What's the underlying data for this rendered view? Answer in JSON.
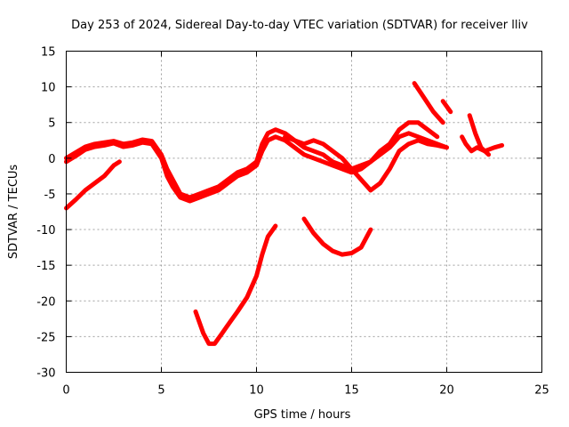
{
  "chart_data": {
    "type": "line",
    "title": "Day 253 of 2024, Sidereal Day-to-day VTEC variation (SDTVAR) for receiver lliv",
    "xlabel": "GPS time / hours",
    "ylabel": "SDTVAR / TECUs",
    "xlim": [
      0,
      25
    ],
    "ylim": [
      -30,
      15
    ],
    "xticks": [
      0,
      5,
      10,
      15,
      20,
      25
    ],
    "yticks": [
      -30,
      -25,
      -20,
      -15,
      -10,
      -5,
      0,
      5,
      10,
      15
    ],
    "grid": true,
    "legend": "none",
    "series_color": "#ff0000",
    "series": [
      {
        "x": [
          0,
          0.5,
          1,
          1.5,
          2,
          2.5,
          3,
          3.5,
          4,
          4.5,
          5,
          5.3,
          5.6,
          6,
          6.5,
          7,
          7.5,
          8,
          8.5,
          9,
          9.5,
          10,
          10.3,
          10.6,
          11,
          11.5,
          12,
          12.5,
          13,
          13.5,
          14,
          14.5,
          15,
          15.5,
          16,
          16.5,
          17,
          17.5,
          18,
          18.5,
          19,
          19.5,
          20
        ],
        "y": [
          0,
          0.8,
          1.6,
          2.0,
          2.2,
          2.4,
          2.0,
          2.2,
          2.6,
          2.4,
          0.5,
          -1.5,
          -3.0,
          -5.0,
          -5.5,
          -5.0,
          -4.5,
          -4.0,
          -3.0,
          -2.0,
          -1.5,
          -0.5,
          2.0,
          3.5,
          4.0,
          3.5,
          2.5,
          1.5,
          1.0,
          0.5,
          -0.5,
          -1.0,
          -1.5,
          -1.0,
          -0.5,
          0.5,
          1.5,
          3.0,
          3.5,
          3.0,
          2.5,
          2.0,
          1.5
        ]
      },
      {
        "x": [
          0,
          0.5,
          1,
          1.5,
          2,
          2.5,
          3,
          3.5,
          4,
          4.5,
          5,
          5.3,
          5.6,
          6,
          6.5,
          7,
          7.5,
          8,
          8.5,
          9,
          9.5,
          10,
          10.3,
          10.6,
          11,
          11.5,
          12,
          12.5,
          13,
          13.5,
          14,
          14.5,
          15,
          15.5,
          16,
          16.5,
          17,
          17.5,
          18,
          18.5,
          19,
          19.5
        ],
        "y": [
          -0.5,
          0.3,
          1.2,
          1.6,
          1.8,
          2.1,
          1.6,
          1.8,
          2.2,
          2.0,
          0,
          -2.5,
          -4.0,
          -5.5,
          -6.0,
          -5.5,
          -5.0,
          -4.5,
          -3.5,
          -2.5,
          -2.0,
          -1.0,
          1.0,
          2.5,
          3.0,
          2.5,
          1.5,
          0.5,
          0,
          -0.5,
          -1.0,
          -1.5,
          -2.0,
          -1.5,
          -0.5,
          1.0,
          2.0,
          4.0,
          5.0,
          5.0,
          4.0,
          3.0
        ]
      },
      {
        "x": [
          11.5,
          12,
          12.5,
          13,
          13.5,
          14,
          14.5,
          15,
          15.5,
          16,
          16.5,
          17,
          17.5,
          18,
          18.5,
          19,
          19.5,
          20
        ],
        "y": [
          3.0,
          2.5,
          2.0,
          2.5,
          2.0,
          1.0,
          0,
          -1.5,
          -3.0,
          -4.5,
          -3.5,
          -1.5,
          1.0,
          2.0,
          2.5,
          2.0,
          1.8,
          1.5
        ]
      },
      {
        "x": [
          0,
          0.5,
          1,
          1.5,
          2,
          2.5,
          2.8
        ],
        "y": [
          -7.0,
          -5.8,
          -4.5,
          -3.5,
          -2.5,
          -1.0,
          -0.5
        ]
      },
      {
        "x": [
          6.8,
          7.2,
          7.5,
          7.8,
          8.2,
          8.6,
          9,
          9.5,
          10,
          10.3,
          10.6,
          11
        ],
        "y": [
          -21.5,
          -24.5,
          -26.0,
          -26.0,
          -24.5,
          -23.0,
          -21.5,
          -19.5,
          -16.5,
          -13.5,
          -11.0,
          -9.5
        ]
      },
      {
        "x": [
          12.5,
          13,
          13.5,
          14,
          14.5,
          15,
          15.5,
          16
        ],
        "y": [
          -8.5,
          -10.5,
          -12.0,
          -13.0,
          -13.5,
          -13.3,
          -12.5,
          -10.0
        ]
      },
      {
        "x": [
          18.3,
          18.8,
          19.3,
          19.8
        ],
        "y": [
          10.5,
          8.5,
          6.5,
          5.0
        ]
      },
      {
        "x": [
          19.8,
          20.2
        ],
        "y": [
          8.0,
          6.5
        ]
      },
      {
        "x": [
          20.8,
          21.0,
          21.3,
          21.6,
          22,
          22.5,
          22.9
        ],
        "y": [
          3.0,
          2.0,
          1.0,
          1.5,
          1.0,
          1.5,
          1.8
        ]
      },
      {
        "x": [
          21.2,
          21.5,
          21.8,
          22.2
        ],
        "y": [
          6.0,
          3.5,
          1.5,
          0.5
        ]
      }
    ]
  }
}
